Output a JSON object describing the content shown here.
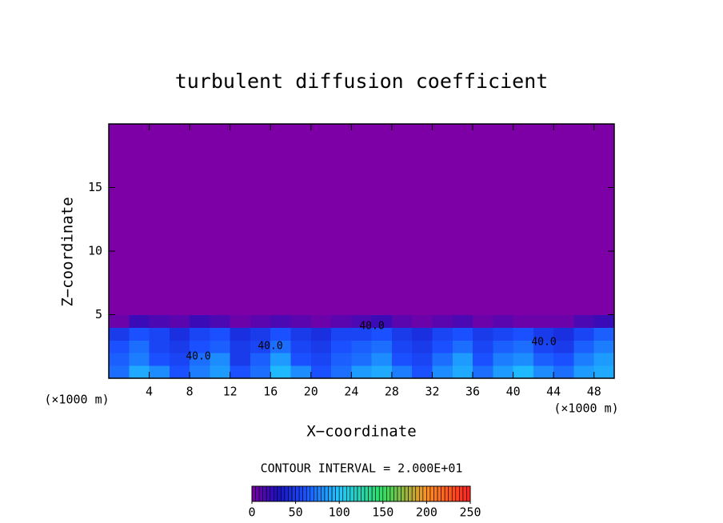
{
  "chart_data": {
    "type": "contour",
    "title": "turbulent diffusion coefficient",
    "x_label": "X−coordinate",
    "y_label": "Z−coordinate",
    "x_unit_label": "(×1000 m)",
    "y_unit_label": "(×1000 m)",
    "note": "CONTOUR INTERVAL = 2.000E+01",
    "contour_labels": [
      "40.0",
      "40.0",
      "40.0",
      "40.0"
    ],
    "xlim": [
      0,
      50
    ],
    "ylim": [
      0,
      20
    ],
    "xticks": [
      4,
      8,
      12,
      16,
      20,
      24,
      28,
      32,
      36,
      40,
      44,
      48
    ],
    "yticks": [
      5,
      10,
      15
    ],
    "x_edges": [
      0,
      2,
      4,
      6,
      8,
      10,
      12,
      14,
      16,
      18,
      20,
      22,
      24,
      26,
      28,
      30,
      32,
      34,
      36,
      38,
      40,
      42,
      44,
      46,
      48,
      50
    ],
    "y_edges": [
      0,
      1,
      2,
      3,
      4,
      5,
      20
    ],
    "values": [
      [
        70,
        90,
        80,
        60,
        75,
        85,
        60,
        70,
        95,
        80,
        60,
        70,
        85,
        90,
        75,
        60,
        80,
        90,
        70,
        85,
        95,
        80,
        70,
        85,
        90
      ],
      [
        65,
        75,
        60,
        55,
        70,
        80,
        50,
        65,
        85,
        60,
        55,
        65,
        70,
        80,
        60,
        55,
        70,
        85,
        60,
        75,
        80,
        65,
        60,
        75,
        85
      ],
      [
        60,
        70,
        55,
        50,
        60,
        65,
        50,
        55,
        70,
        55,
        50,
        60,
        65,
        70,
        55,
        50,
        60,
        70,
        55,
        65,
        70,
        55,
        50,
        65,
        75
      ],
      [
        50,
        60,
        55,
        45,
        55,
        60,
        45,
        50,
        60,
        50,
        45,
        55,
        55,
        60,
        50,
        45,
        55,
        60,
        50,
        55,
        60,
        50,
        45,
        55,
        65
      ],
      [
        5,
        20,
        15,
        10,
        20,
        15,
        5,
        10,
        15,
        10,
        5,
        10,
        15,
        20,
        10,
        5,
        10,
        15,
        5,
        10,
        5,
        5,
        5,
        15,
        20
      ],
      [
        0,
        0,
        0,
        0,
        0,
        0,
        0,
        0,
        0,
        0,
        0,
        0,
        0,
        0,
        0,
        0,
        0,
        0,
        0,
        0,
        0,
        0,
        0,
        0,
        0
      ]
    ],
    "clim": [
      0,
      250
    ],
    "cticks": [
      0,
      50,
      100,
      150,
      200,
      250
    ],
    "colormap": [
      "#7c00a6",
      "#1a10c0",
      "#1a50ff",
      "#20c8ff",
      "#30e060",
      "#ff9020",
      "#ff2020"
    ],
    "colormap_stops": [
      0,
      30,
      60,
      100,
      150,
      200,
      250
    ]
  }
}
